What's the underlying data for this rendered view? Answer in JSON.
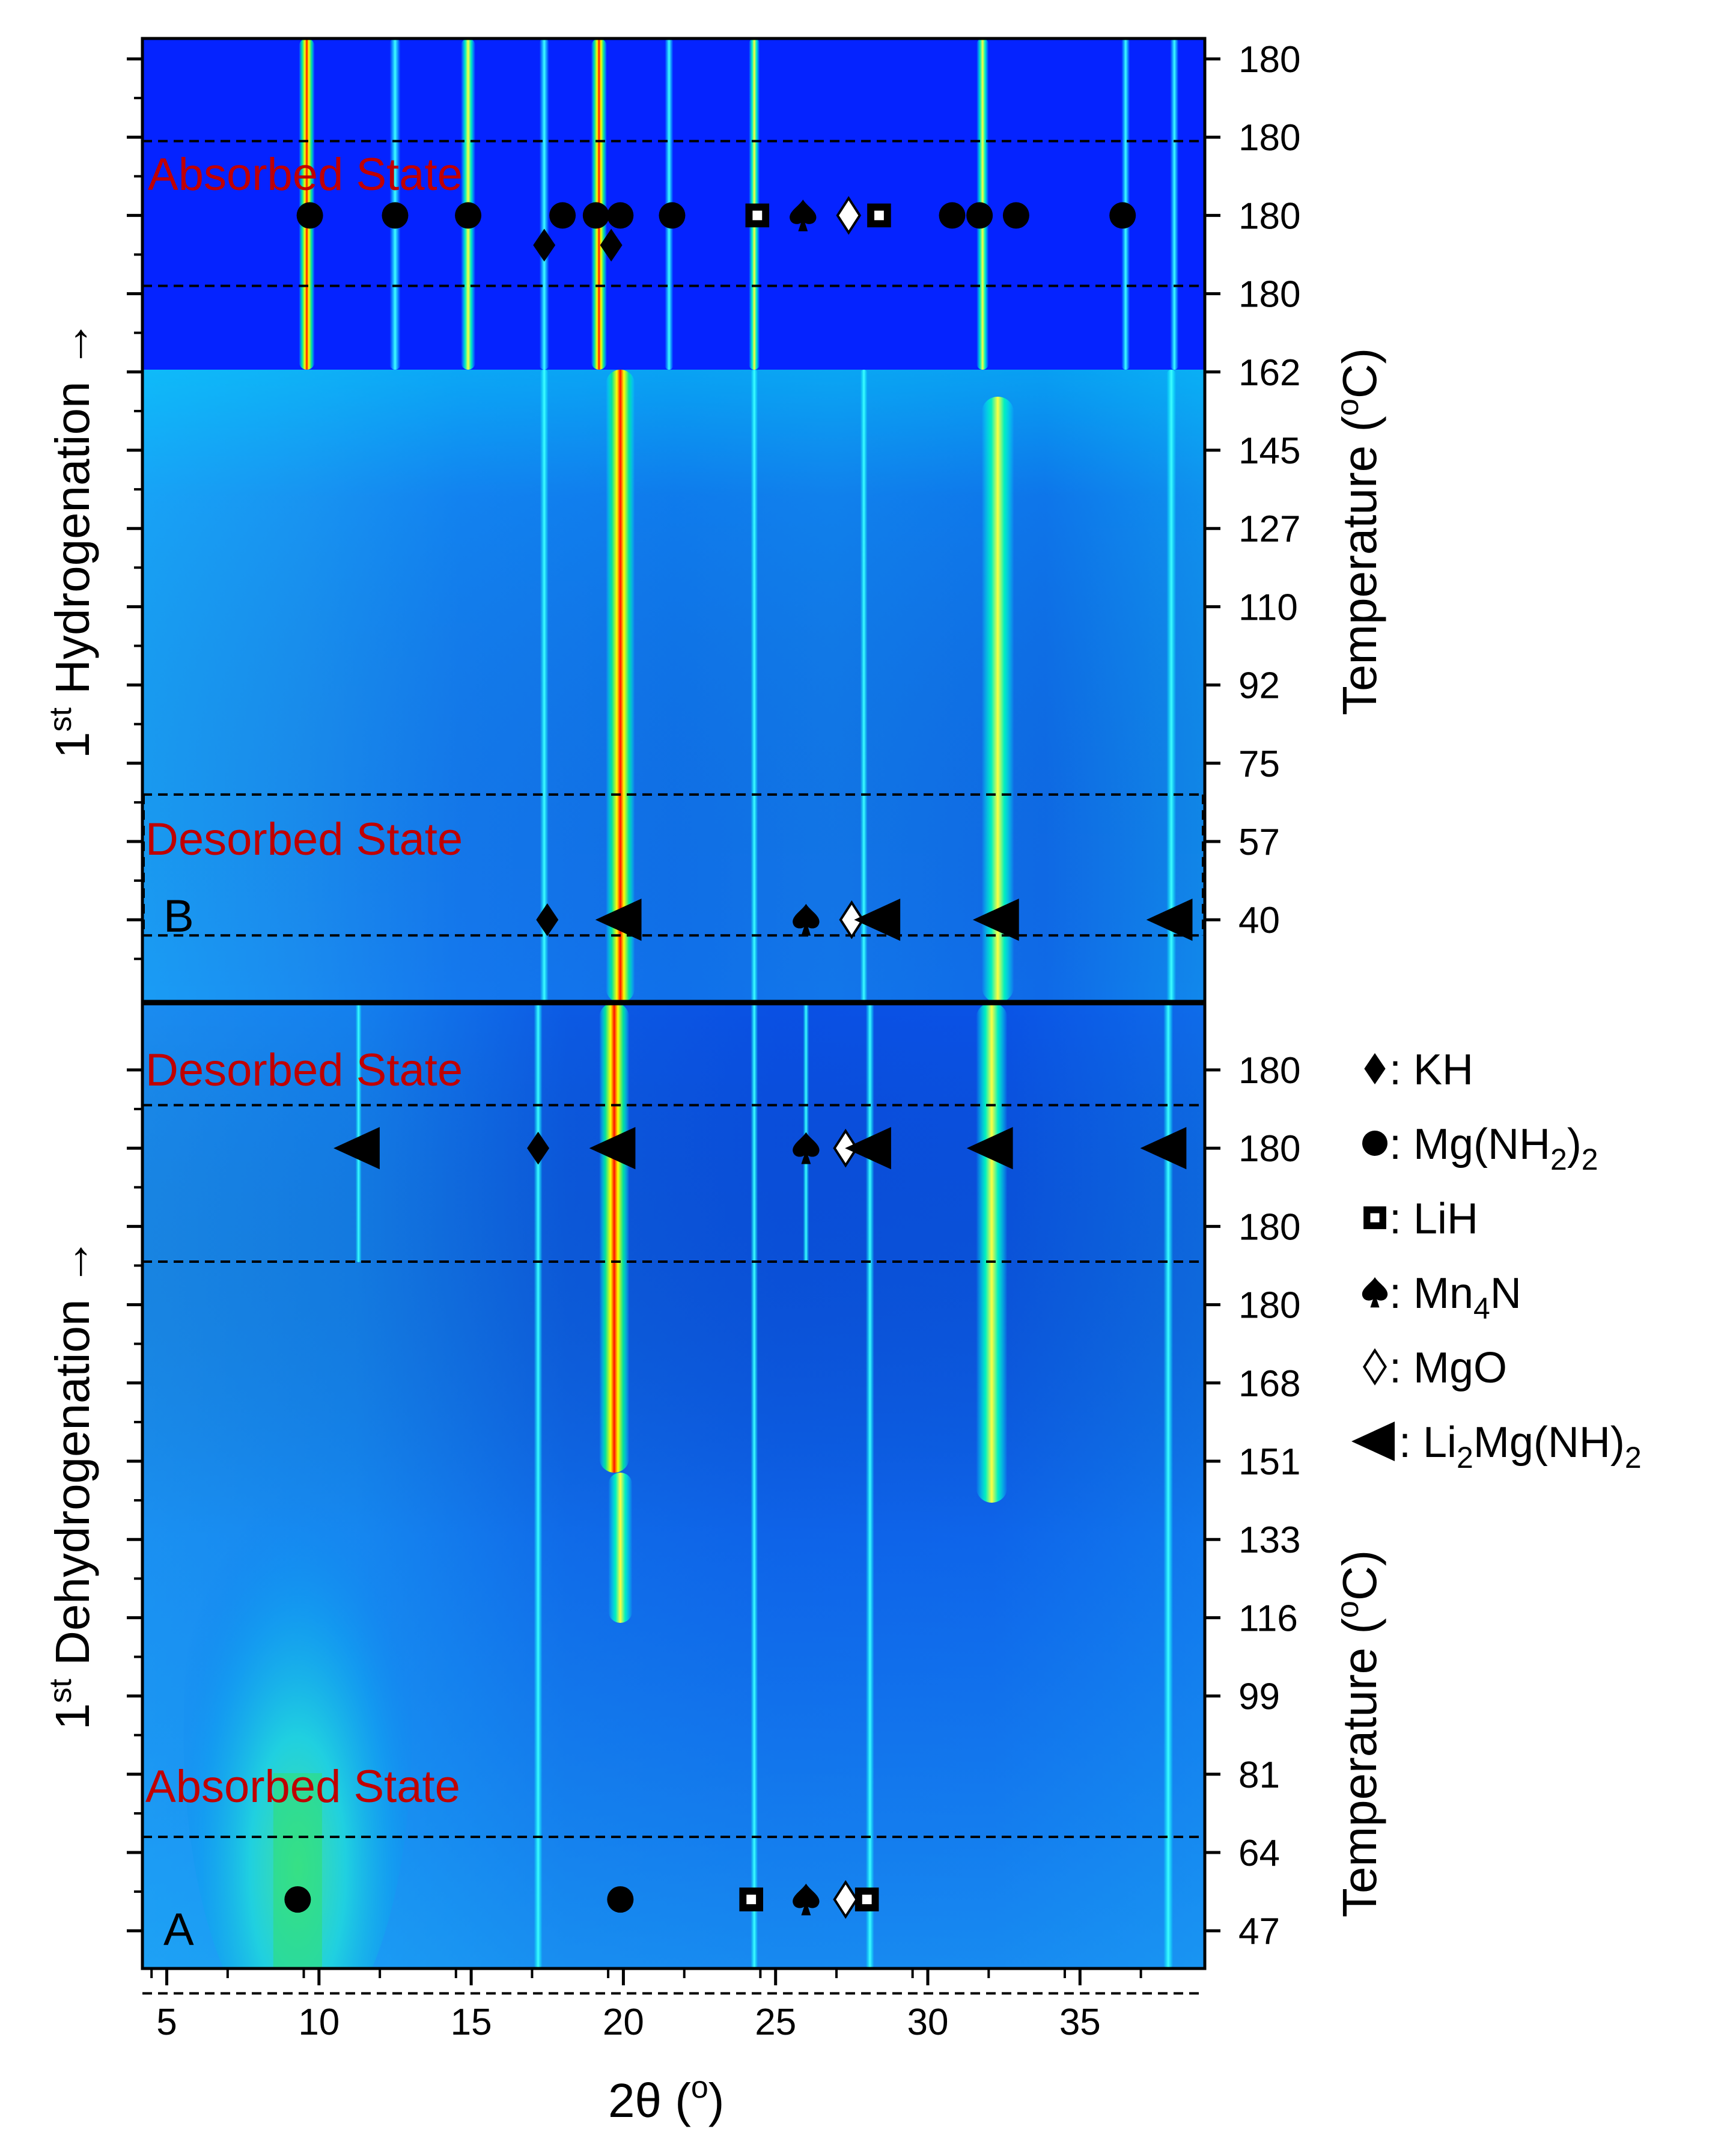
{
  "chart_data": {
    "type": "heatmap",
    "title": "",
    "xlabel_main": "2θ (",
    "xlabel_unit": "o",
    "xlabel_close": ")",
    "xlim": [
      4.2,
      39.1
    ],
    "x_ticks": [
      "5",
      "10",
      "15",
      "20",
      "25",
      "30",
      "35"
    ],
    "x_tick_values": [
      5,
      10,
      15,
      20,
      25,
      30,
      35
    ],
    "panel_b": {
      "ylabel_prefix": "1",
      "ylabel_sup": "st",
      "ylabel_text": " Hydrogenation →",
      "panel_letter": "B",
      "temperature_ticks": [
        "180",
        "180",
        "180",
        "180",
        "162",
        "145",
        "127",
        "110",
        "92",
        "75",
        "57",
        "40"
      ],
      "regions": [
        {
          "label": "Absorbed State",
          "rows": [
            1.05,
            2.9
          ]
        },
        {
          "label": "Desorbed State",
          "rows": [
            9.4,
            11.2
          ]
        }
      ],
      "peak_positions_absorbed": [
        9.6,
        12.5,
        14.9,
        17.4,
        19.2,
        21.5,
        24.3,
        31.8
      ],
      "peak_positions_desorbed": [
        17.4,
        19.9,
        24.3,
        27.9,
        32.3,
        38.0
      ]
    },
    "panel_a": {
      "ylabel_prefix": "1",
      "ylabel_sup": "st",
      "ylabel_text": " Dehydrogenation →",
      "panel_letter": "A",
      "temperature_ticks": [
        "180",
        "180",
        "180",
        "180",
        "168",
        "151",
        "133",
        "116",
        "99",
        "81",
        "64",
        "47"
      ],
      "regions": [
        {
          "label": "Desorbed State",
          "rows": [
            0.45,
            2.45
          ]
        },
        {
          "label": "Absorbed State",
          "rows": [
            9.8,
            11.8
          ]
        }
      ],
      "peak_positions_desorbed": [
        17.2,
        19.7,
        24.3,
        27.9,
        32.1,
        38.0
      ],
      "peak_positions_absorbed": [
        9.3,
        19.9,
        24.3,
        28.2
      ]
    },
    "ylabel_right_main": "Temperature (",
    "ylabel_right_unit": "o",
    "ylabel_right_close": "C)",
    "colormap": [
      "#0000ff",
      "#0a7fff",
      "#00ffff",
      "#00e070",
      "#ffff00",
      "#ff0000"
    ],
    "markers": [
      {
        "panel": "B",
        "row": 2,
        "x": 9.7,
        "phase": "Mg(NH2)2"
      },
      {
        "panel": "B",
        "row": 2,
        "x": 12.5,
        "phase": "Mg(NH2)2"
      },
      {
        "panel": "B",
        "row": 2,
        "x": 14.9,
        "phase": "Mg(NH2)2"
      },
      {
        "panel": "B",
        "row": 2,
        "x": 18.0,
        "phase": "Mg(NH2)2"
      },
      {
        "panel": "B",
        "row": 2,
        "x": 19.1,
        "phase": "Mg(NH2)2"
      },
      {
        "panel": "B",
        "row": 2,
        "x": 19.9,
        "phase": "Mg(NH2)2"
      },
      {
        "panel": "B",
        "row": 2,
        "x": 21.6,
        "phase": "Mg(NH2)2"
      },
      {
        "panel": "B",
        "row": 2,
        "x": 24.4,
        "phase": "LiH"
      },
      {
        "panel": "B",
        "row": 2,
        "x": 25.9,
        "phase": "Mn4N"
      },
      {
        "panel": "B",
        "row": 2,
        "x": 27.4,
        "phase": "MgO"
      },
      {
        "panel": "B",
        "row": 2,
        "x": 28.4,
        "phase": "LiH"
      },
      {
        "panel": "B",
        "row": 2,
        "x": 30.8,
        "phase": "Mg(NH2)2"
      },
      {
        "panel": "B",
        "row": 2,
        "x": 31.7,
        "phase": "Mg(NH2)2"
      },
      {
        "panel": "B",
        "row": 2,
        "x": 32.9,
        "phase": "Mg(NH2)2"
      },
      {
        "panel": "B",
        "row": 2,
        "x": 36.4,
        "phase": "Mg(NH2)2"
      },
      {
        "panel": "B",
        "row": 2.38,
        "x": 17.4,
        "phase": "KH"
      },
      {
        "panel": "B",
        "row": 2.38,
        "x": 19.6,
        "phase": "KH"
      },
      {
        "panel": "B",
        "row": 11,
        "x": 17.5,
        "phase": "KH"
      },
      {
        "panel": "B",
        "row": 11,
        "x": 19.9,
        "phase": "Li2Mg(NH)2"
      },
      {
        "panel": "B",
        "row": 11,
        "x": 26.0,
        "phase": "Mn4N"
      },
      {
        "panel": "B",
        "row": 11,
        "x": 27.5,
        "phase": "MgO"
      },
      {
        "panel": "B",
        "row": 11,
        "x": 28.4,
        "phase": "Li2Mg(NH)2"
      },
      {
        "panel": "B",
        "row": 11,
        "x": 32.3,
        "phase": "Li2Mg(NH)2"
      },
      {
        "panel": "B",
        "row": 11,
        "x": 38.0,
        "phase": "Li2Mg(NH)2"
      },
      {
        "panel": "A",
        "row": 1,
        "x": 11.3,
        "phase": "Li2Mg(NH)2"
      },
      {
        "panel": "A",
        "row": 1,
        "x": 17.2,
        "phase": "KH"
      },
      {
        "panel": "A",
        "row": 1,
        "x": 19.7,
        "phase": "Li2Mg(NH)2"
      },
      {
        "panel": "A",
        "row": 1,
        "x": 26.0,
        "phase": "Mn4N"
      },
      {
        "panel": "A",
        "row": 1,
        "x": 27.3,
        "phase": "MgO"
      },
      {
        "panel": "A",
        "row": 1,
        "x": 28.1,
        "phase": "Li2Mg(NH)2"
      },
      {
        "panel": "A",
        "row": 1,
        "x": 32.1,
        "phase": "Li2Mg(NH)2"
      },
      {
        "panel": "A",
        "row": 1,
        "x": 37.8,
        "phase": "Li2Mg(NH)2"
      },
      {
        "panel": "A",
        "row": 10.6,
        "x": 9.3,
        "phase": "Mg(NH2)2"
      },
      {
        "panel": "A",
        "row": 10.6,
        "x": 19.9,
        "phase": "Mg(NH2)2"
      },
      {
        "panel": "A",
        "row": 10.6,
        "x": 24.2,
        "phase": "LiH"
      },
      {
        "panel": "A",
        "row": 10.6,
        "x": 26.0,
        "phase": "Mn4N"
      },
      {
        "panel": "A",
        "row": 10.6,
        "x": 27.3,
        "phase": "MgO"
      },
      {
        "panel": "A",
        "row": 10.6,
        "x": 28.0,
        "phase": "LiH"
      }
    ],
    "legend": [
      {
        "symbol": "diamond-filled",
        "label": ": KH"
      },
      {
        "symbol": "circle-filled",
        "label": ": Mg(NH",
        "sub": "2",
        "suffix": ")",
        "sub2": "2"
      },
      {
        "symbol": "square-dotted",
        "label": ": LiH"
      },
      {
        "symbol": "spade",
        "label": ": Mn",
        "sub": "4",
        "suffix": "N"
      },
      {
        "symbol": "diamond-open",
        "label": ": MgO"
      },
      {
        "symbol": "triangle-left",
        "label": ": Li",
        "sub": "2",
        "suffix": "Mg(NH)",
        "sub2": "2"
      }
    ]
  }
}
